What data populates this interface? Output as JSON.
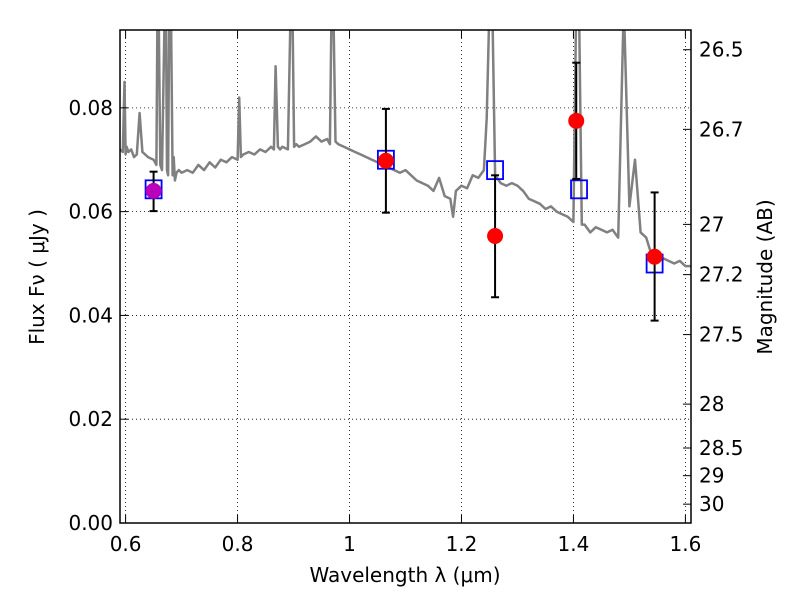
{
  "chart_data": {
    "type": "scatter",
    "xlabel": "Wavelength  λ (μm)",
    "ylabel": "Flux  Fν  ( μJy )",
    "y2label": "Magnitude (AB)",
    "xlim": [
      0.59,
      1.61
    ],
    "ylim": [
      0.0,
      0.095
    ],
    "grid": true,
    "x_ticks": [
      {
        "value": 0.6,
        "label": "0.6"
      },
      {
        "value": 0.8,
        "label": "0.8"
      },
      {
        "value": 1.0,
        "label": "1"
      },
      {
        "value": 1.2,
        "label": "1.2"
      },
      {
        "value": 1.4,
        "label": "1.4"
      },
      {
        "value": 1.6,
        "label": "1.6"
      }
    ],
    "y_ticks": [
      {
        "value": 0.0,
        "label": "0.00"
      },
      {
        "value": 0.02,
        "label": "0.02"
      },
      {
        "value": 0.04,
        "label": "0.04"
      },
      {
        "value": 0.06,
        "label": "0.06"
      },
      {
        "value": 0.08,
        "label": "0.08"
      }
    ],
    "y2_ticks": [
      {
        "value": 26.5,
        "label": "26.5"
      },
      {
        "value": 26.7,
        "label": "26.7"
      },
      {
        "value": 27.0,
        "label": "27"
      },
      {
        "value": 27.2,
        "label": "27.2"
      },
      {
        "value": 27.5,
        "label": "27.5"
      },
      {
        "value": 28.0,
        "label": "28"
      },
      {
        "value": 28.5,
        "label": "28.5"
      },
      {
        "value": 29.0,
        "label": "29"
      },
      {
        "value": 30.0,
        "label": "30"
      }
    ],
    "series": [
      {
        "kind": "model_sed",
        "color": "#808080",
        "x": [
          0.59,
          0.595,
          0.598,
          0.6,
          0.602,
          0.605,
          0.61,
          0.615,
          0.62,
          0.625,
          0.63,
          0.64,
          0.65,
          0.655,
          0.657,
          0.659,
          0.662,
          0.665,
          0.67,
          0.672,
          0.674,
          0.676,
          0.678,
          0.681,
          0.684,
          0.686,
          0.688,
          0.691,
          0.695,
          0.7,
          0.71,
          0.72,
          0.73,
          0.74,
          0.75,
          0.76,
          0.77,
          0.78,
          0.79,
          0.8,
          0.803,
          0.806,
          0.81,
          0.82,
          0.83,
          0.84,
          0.85,
          0.86,
          0.865,
          0.868,
          0.872,
          0.876,
          0.88,
          0.89,
          0.895,
          0.898,
          0.901,
          0.905,
          0.91,
          0.92,
          0.93,
          0.94,
          0.95,
          0.96,
          0.965,
          0.968,
          0.971,
          0.975,
          0.98,
          0.99,
          1.0,
          1.01,
          1.02,
          1.03,
          1.04,
          1.05,
          1.06,
          1.07,
          1.08,
          1.09,
          1.1,
          1.11,
          1.12,
          1.13,
          1.14,
          1.15,
          1.16,
          1.17,
          1.18,
          1.185,
          1.19,
          1.2,
          1.21,
          1.22,
          1.23,
          1.24,
          1.245,
          1.25,
          1.255,
          1.26,
          1.27,
          1.28,
          1.29,
          1.3,
          1.31,
          1.32,
          1.33,
          1.34,
          1.35,
          1.36,
          1.37,
          1.38,
          1.39,
          1.4,
          1.405,
          1.41,
          1.415,
          1.42,
          1.43,
          1.44,
          1.45,
          1.46,
          1.47,
          1.48,
          1.49,
          1.5,
          1.51,
          1.52,
          1.53,
          1.54,
          1.55,
          1.56,
          1.57,
          1.58,
          1.59,
          1.6,
          1.61
        ],
        "y": [
          0.072,
          0.0715,
          0.085,
          0.071,
          0.0725,
          0.0715,
          0.072,
          0.0705,
          0.071,
          0.079,
          0.0715,
          0.0705,
          0.07,
          0.069,
          0.1,
          0.1,
          0.069,
          0.068,
          0.1,
          0.1,
          0.068,
          0.067,
          0.1,
          0.1,
          0.067,
          0.0705,
          0.066,
          0.0675,
          0.068,
          0.0675,
          0.068,
          0.0675,
          0.069,
          0.068,
          0.0695,
          0.0685,
          0.07,
          0.0695,
          0.0705,
          0.07,
          0.082,
          0.0705,
          0.071,
          0.0715,
          0.071,
          0.072,
          0.0715,
          0.0725,
          0.072,
          0.088,
          0.0725,
          0.072,
          0.0725,
          0.072,
          0.1,
          0.1,
          0.0725,
          0.073,
          0.0725,
          0.073,
          0.0735,
          0.0745,
          0.0735,
          0.074,
          0.073,
          0.1,
          0.1,
          0.0735,
          0.073,
          0.0725,
          0.072,
          0.0715,
          0.071,
          0.0705,
          0.07,
          0.0695,
          0.069,
          0.0685,
          0.068,
          0.0675,
          0.068,
          0.067,
          0.066,
          0.0655,
          0.065,
          0.064,
          0.0665,
          0.063,
          0.0625,
          0.059,
          0.064,
          0.065,
          0.0645,
          0.067,
          0.0665,
          0.068,
          0.078,
          0.1,
          0.1,
          0.067,
          0.0655,
          0.065,
          0.0655,
          0.065,
          0.064,
          0.0625,
          0.062,
          0.0615,
          0.0605,
          0.061,
          0.06,
          0.0595,
          0.059,
          0.058,
          0.1,
          0.1,
          0.0575,
          0.0575,
          0.056,
          0.057,
          0.0565,
          0.056,
          0.0565,
          0.055,
          0.1,
          0.061,
          0.07,
          0.056,
          0.055,
          0.0515,
          0.0505,
          0.051,
          0.0505,
          0.05,
          0.0505,
          0.0495,
          0.0495
        ]
      },
      {
        "kind": "model_photometry",
        "marker": "open-square",
        "color": "#0000ff",
        "x": [
          0.65,
          1.065,
          1.26,
          1.41,
          1.545
        ],
        "y": [
          0.0643,
          0.07,
          0.068,
          0.0643,
          0.05
        ]
      },
      {
        "kind": "observed_photometry",
        "marker": "filled-circle",
        "color": "#ff0000",
        "x": [
          1.065,
          1.26,
          1.405,
          1.545
        ],
        "y": [
          0.0698,
          0.0553,
          0.0775,
          0.0513
        ],
        "yerr_low": [
          0.0598,
          0.0435,
          0.0663,
          0.039
        ],
        "yerr_high": [
          0.0798,
          0.067,
          0.0887,
          0.0637
        ]
      },
      {
        "kind": "observed_photometry",
        "marker": "filled-circle",
        "color": "#bb00bb",
        "x": [
          0.65
        ],
        "y": [
          0.064
        ],
        "yerr_low": [
          0.0601
        ],
        "yerr_high": [
          0.0677
        ]
      }
    ]
  }
}
